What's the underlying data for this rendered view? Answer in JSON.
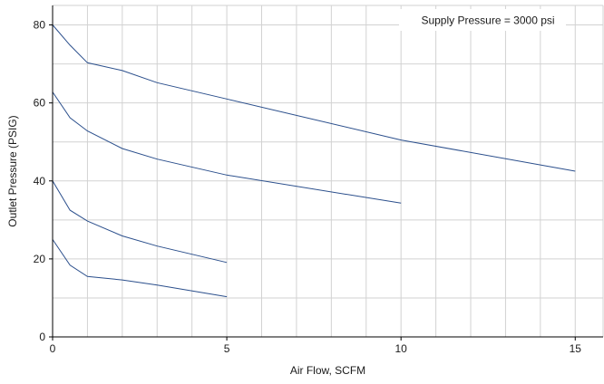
{
  "chart_data": {
    "type": "line",
    "title": "",
    "xlabel": "Air Flow, SCFM",
    "ylabel": "Outlet Pressure (PSIG)",
    "xlim": [
      0,
      15.8
    ],
    "ylim": [
      0,
      85
    ],
    "x_ticks": [
      0,
      5,
      10,
      15
    ],
    "y_ticks": [
      0,
      20,
      40,
      60,
      80
    ],
    "x_grid": [
      0,
      1,
      2,
      3,
      4,
      5,
      6,
      7,
      8,
      9,
      10,
      11,
      12,
      13,
      14,
      15
    ],
    "y_grid": [
      0,
      10,
      20,
      30,
      40,
      50,
      60,
      70,
      80
    ],
    "grid": true,
    "legend": "none",
    "annotation": "Supply Pressure = 3000 psi",
    "line_color": "#2b4f8c",
    "series": [
      {
        "x": [
          0,
          0.5,
          1,
          2,
          3,
          5,
          10,
          15
        ],
        "y": [
          80,
          74.8,
          70.3,
          68.3,
          65.2,
          61,
          50.5,
          42.5
        ]
      },
      {
        "x": [
          0,
          0.5,
          1,
          2,
          3,
          5,
          10
        ],
        "y": [
          62.8,
          56.2,
          52.8,
          48.3,
          45.6,
          41.5,
          34.3
        ]
      },
      {
        "x": [
          0,
          0.5,
          1,
          2,
          3,
          5
        ],
        "y": [
          40,
          32.5,
          29.7,
          25.9,
          23.3,
          19.1
        ]
      },
      {
        "x": [
          0,
          0.5,
          1,
          2,
          3,
          5
        ],
        "y": [
          25,
          18.4,
          15.5,
          14.6,
          13.3,
          10.3
        ]
      }
    ]
  }
}
